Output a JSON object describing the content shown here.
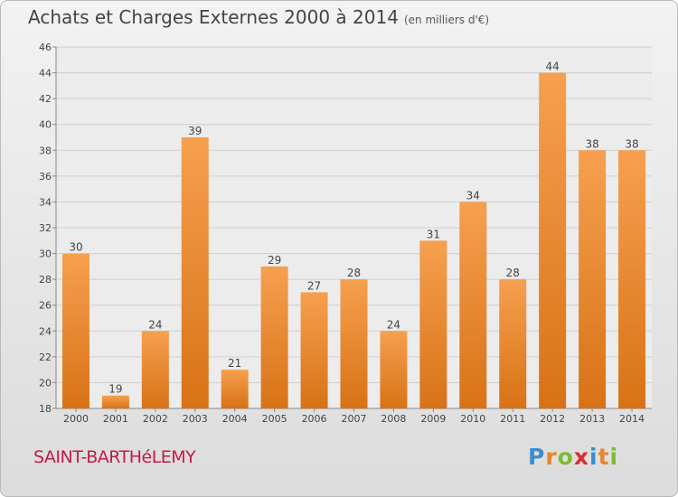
{
  "header": {
    "title": "Achats et Charges Externes 2000 à 2014",
    "subtitle": "(en milliers d'€)"
  },
  "footer": {
    "commune": "SAINT-BARTHéLEMY",
    "logo_letters": [
      "P",
      "r",
      "o",
      "x",
      "i",
      "t",
      "i"
    ],
    "logo_colors": [
      "#3a8fd1",
      "#e8862b",
      "#7cbc34",
      "#d62e2e",
      "#3a8fd1",
      "#e8862b",
      "#7cbc34"
    ]
  },
  "colors": {
    "bar_top": "#f6a04f",
    "bar_bottom": "#d87216",
    "grid": "#cfcfcf",
    "axis": "#888888",
    "label": "#444444"
  },
  "chart_data": {
    "type": "bar",
    "title": "Achats et Charges Externes 2000 à 2014",
    "subtitle": "(en milliers d'€)",
    "categories": [
      "2000",
      "2001",
      "2002",
      "2003",
      "2004",
      "2005",
      "2006",
      "2007",
      "2008",
      "2009",
      "2010",
      "2011",
      "2012",
      "2013",
      "2014"
    ],
    "values": [
      30,
      19,
      24,
      39,
      21,
      29,
      27,
      28,
      24,
      31,
      34,
      28,
      44,
      38,
      38
    ],
    "ylim": [
      18,
      46
    ],
    "yticks": [
      18,
      20,
      22,
      24,
      26,
      28,
      30,
      32,
      34,
      36,
      38,
      40,
      42,
      44,
      46
    ],
    "grid": true,
    "data_labels": true
  }
}
